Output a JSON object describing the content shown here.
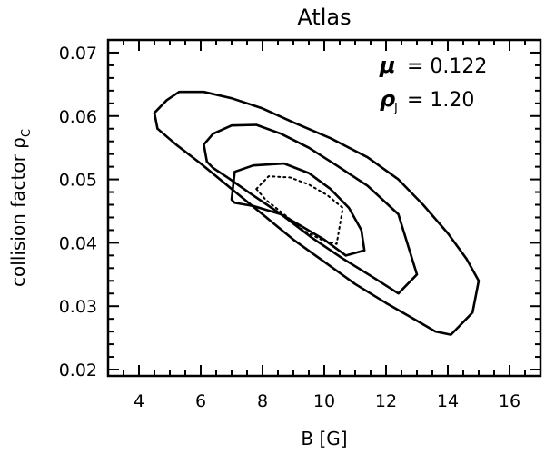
{
  "chart_data": {
    "type": "line",
    "title": "Atlas",
    "xlabel": "B [G]",
    "ylabel": "collision factor ρ",
    "ylabel_sub": "C",
    "xlim": [
      3,
      17
    ],
    "ylim": [
      0.019,
      0.072
    ],
    "x_ticks": [
      4,
      6,
      8,
      10,
      12,
      14,
      16
    ],
    "x_tick_labels": [
      "4",
      "6",
      "8",
      "10",
      "12",
      "14",
      "16"
    ],
    "x_minor_step": 0.5,
    "y_ticks": [
      0.02,
      0.03,
      0.04,
      0.05,
      0.06,
      0.07
    ],
    "y_tick_labels": [
      "0.02",
      "0.03",
      "0.04",
      "0.05",
      "0.06",
      "0.07"
    ],
    "y_minor_step": 0.002,
    "grid": false,
    "annotations": [
      {
        "symbol": "μ",
        "subscript": "",
        "text": "= 0.122"
      },
      {
        "symbol": "ρ",
        "subscript": "J",
        "text": "= 1.20"
      }
    ],
    "series": [
      {
        "style": "solid",
        "x": [
          4.6,
          4.5,
          4.9,
          5.3,
          6.1,
          7.0,
          8.0,
          9.0,
          10.2,
          11.4,
          12.4,
          13.2,
          14.0,
          14.6,
          15.0,
          14.8,
          14.1,
          13.6,
          12.9,
          12.0,
          11.0,
          10.0,
          9.0,
          8.0,
          7.0,
          6.0,
          5.2,
          4.6
        ],
        "y": [
          0.058,
          0.0605,
          0.0625,
          0.0638,
          0.0638,
          0.0628,
          0.0612,
          0.059,
          0.0565,
          0.0535,
          0.05,
          0.046,
          0.0415,
          0.0375,
          0.034,
          0.029,
          0.0255,
          0.026,
          0.028,
          0.0305,
          0.0335,
          0.037,
          0.0405,
          0.0445,
          0.0485,
          0.0525,
          0.0555,
          0.058
        ]
      },
      {
        "style": "solid",
        "x": [
          6.2,
          6.1,
          6.4,
          7.0,
          7.8,
          8.6,
          9.5,
          10.4,
          11.4,
          12.4,
          13.0,
          12.4,
          11.6,
          10.6,
          9.6,
          8.6,
          7.6,
          6.9,
          6.4,
          6.2
        ],
        "y": [
          0.0528,
          0.0555,
          0.0572,
          0.0585,
          0.0586,
          0.0572,
          0.055,
          0.0522,
          0.049,
          0.0445,
          0.035,
          0.032,
          0.0345,
          0.0375,
          0.0408,
          0.0445,
          0.0478,
          0.0502,
          0.0518,
          0.0528
        ]
      },
      {
        "style": "solid",
        "x": [
          7.0,
          7.1,
          7.7,
          8.7,
          9.5,
          10.2,
          10.8,
          11.2,
          11.3,
          10.7,
          10.0,
          9.3,
          8.6,
          7.7,
          7.1,
          7.0
        ],
        "y": [
          0.0468,
          0.0512,
          0.0522,
          0.0525,
          0.051,
          0.0485,
          0.0455,
          0.042,
          0.0388,
          0.038,
          0.0405,
          0.0425,
          0.0445,
          0.0458,
          0.0463,
          0.0468
        ]
      },
      {
        "style": "dotted",
        "x": [
          7.8,
          8.2,
          8.9,
          9.5,
          10.1,
          10.6,
          10.4,
          9.9,
          9.3,
          8.7,
          8.1,
          7.8
        ],
        "y": [
          0.0485,
          0.0505,
          0.0503,
          0.0492,
          0.0475,
          0.0455,
          0.0398,
          0.0405,
          0.042,
          0.0445,
          0.0468,
          0.0485
        ]
      }
    ]
  }
}
